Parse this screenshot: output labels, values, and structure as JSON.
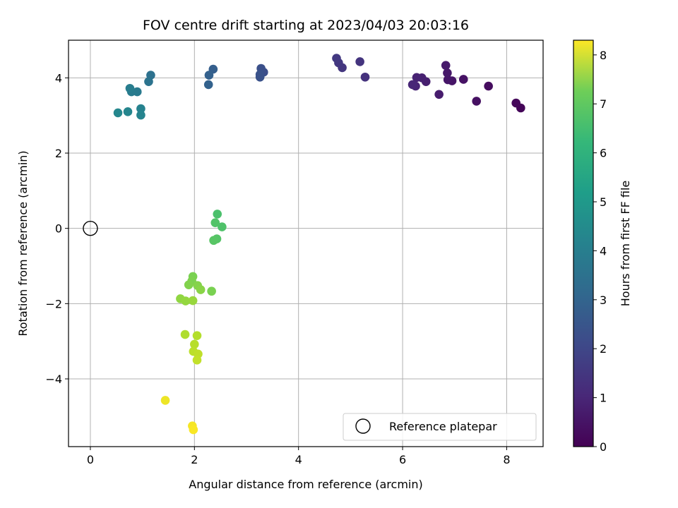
{
  "chart_data": {
    "type": "scatter",
    "title": "FOV centre drift starting at 2023/04/03 20:03:16",
    "xlabel": "Angular distance from reference (arcmin)",
    "ylabel": "Rotation from reference (arcmin)",
    "xlim": [
      -0.42,
      8.7
    ],
    "ylim": [
      -5.8,
      5.0
    ],
    "xticks": [
      0,
      2,
      4,
      6,
      8
    ],
    "yticks": [
      -4,
      -2,
      0,
      2,
      4
    ],
    "xtick_labels": [
      "0",
      "2",
      "4",
      "6",
      "8"
    ],
    "ytick_labels": [
      "−4",
      "−2",
      "0",
      "2",
      "4"
    ],
    "grid": true,
    "colormap": "viridis",
    "colorbar": {
      "label": "Hours from first FF file",
      "range": [
        0,
        8.3
      ],
      "ticks": [
        0,
        1,
        2,
        3,
        4,
        5,
        6,
        7,
        8
      ],
      "tick_labels": [
        "0",
        "1",
        "2",
        "3",
        "4",
        "5",
        "6",
        "7",
        "8"
      ]
    },
    "reference_point": {
      "x": 0,
      "y": 0,
      "label": "Reference platepar"
    },
    "legend": {
      "position": "lower-right",
      "entries": [
        "Reference platepar"
      ]
    },
    "points": [
      {
        "x": 8.27,
        "y": 3.2,
        "t": 0.1
      },
      {
        "x": 8.18,
        "y": 3.33,
        "t": 0.15
      },
      {
        "x": 7.65,
        "y": 3.78,
        "t": 0.25
      },
      {
        "x": 7.42,
        "y": 3.38,
        "t": 0.35
      },
      {
        "x": 7.17,
        "y": 3.96,
        "t": 0.4
      },
      {
        "x": 6.95,
        "y": 3.92,
        "t": 0.45
      },
      {
        "x": 6.87,
        "y": 3.95,
        "t": 0.5
      },
      {
        "x": 6.86,
        "y": 4.13,
        "t": 0.55
      },
      {
        "x": 6.83,
        "y": 4.33,
        "t": 0.6
      },
      {
        "x": 6.7,
        "y": 3.56,
        "t": 0.65
      },
      {
        "x": 6.45,
        "y": 3.9,
        "t": 0.7
      },
      {
        "x": 6.37,
        "y": 4.0,
        "t": 0.75
      },
      {
        "x": 6.27,
        "y": 4.01,
        "t": 0.8
      },
      {
        "x": 6.25,
        "y": 3.78,
        "t": 0.85
      },
      {
        "x": 6.19,
        "y": 3.82,
        "t": 0.9
      },
      {
        "x": 5.28,
        "y": 4.02,
        "t": 1.2
      },
      {
        "x": 5.18,
        "y": 4.43,
        "t": 1.25
      },
      {
        "x": 4.84,
        "y": 4.27,
        "t": 1.3
      },
      {
        "x": 4.77,
        "y": 4.4,
        "t": 1.35
      },
      {
        "x": 4.73,
        "y": 4.52,
        "t": 1.4
      },
      {
        "x": 3.33,
        "y": 4.15,
        "t": 2.0
      },
      {
        "x": 3.28,
        "y": 4.25,
        "t": 2.05
      },
      {
        "x": 3.26,
        "y": 4.02,
        "t": 2.1
      },
      {
        "x": 3.26,
        "y": 4.09,
        "t": 2.12
      },
      {
        "x": 2.36,
        "y": 4.23,
        "t": 2.5
      },
      {
        "x": 2.28,
        "y": 4.07,
        "t": 2.55
      },
      {
        "x": 2.27,
        "y": 3.82,
        "t": 2.6
      },
      {
        "x": 1.16,
        "y": 4.07,
        "t": 3.1
      },
      {
        "x": 1.12,
        "y": 3.9,
        "t": 3.15
      },
      {
        "x": 0.9,
        "y": 3.63,
        "t": 3.4
      },
      {
        "x": 0.79,
        "y": 3.63,
        "t": 3.45
      },
      {
        "x": 0.76,
        "y": 3.72,
        "t": 3.5
      },
      {
        "x": 0.97,
        "y": 3.18,
        "t": 3.7
      },
      {
        "x": 0.97,
        "y": 3.01,
        "t": 3.75
      },
      {
        "x": 0.72,
        "y": 3.1,
        "t": 3.8
      },
      {
        "x": 0.53,
        "y": 3.07,
        "t": 3.85
      },
      {
        "x": 2.44,
        "y": 0.38,
        "t": 5.9
      },
      {
        "x": 2.53,
        "y": 0.04,
        "t": 5.95
      },
      {
        "x": 2.4,
        "y": 0.15,
        "t": 6.0
      },
      {
        "x": 2.43,
        "y": -0.28,
        "t": 6.05
      },
      {
        "x": 2.37,
        "y": -0.32,
        "t": 6.1
      },
      {
        "x": 1.97,
        "y": -1.28,
        "t": 6.6
      },
      {
        "x": 1.95,
        "y": -1.4,
        "t": 6.65
      },
      {
        "x": 1.89,
        "y": -1.5,
        "t": 6.7
      },
      {
        "x": 2.06,
        "y": -1.52,
        "t": 6.75
      },
      {
        "x": 2.12,
        "y": -1.63,
        "t": 6.8
      },
      {
        "x": 2.33,
        "y": -1.67,
        "t": 6.6
      },
      {
        "x": 1.73,
        "y": -1.87,
        "t": 6.9
      },
      {
        "x": 1.83,
        "y": -1.93,
        "t": 6.95
      },
      {
        "x": 1.97,
        "y": -1.92,
        "t": 7.0
      },
      {
        "x": 1.82,
        "y": -2.82,
        "t": 7.3
      },
      {
        "x": 2.05,
        "y": -2.85,
        "t": 7.35
      },
      {
        "x": 2.0,
        "y": -3.08,
        "t": 7.4
      },
      {
        "x": 1.98,
        "y": -3.27,
        "t": 7.45
      },
      {
        "x": 2.07,
        "y": -3.34,
        "t": 7.5
      },
      {
        "x": 2.05,
        "y": -3.5,
        "t": 7.55
      },
      {
        "x": 1.44,
        "y": -4.57,
        "t": 8.1
      },
      {
        "x": 1.96,
        "y": -5.25,
        "t": 8.2
      },
      {
        "x": 1.98,
        "y": -5.35,
        "t": 8.25
      }
    ]
  }
}
